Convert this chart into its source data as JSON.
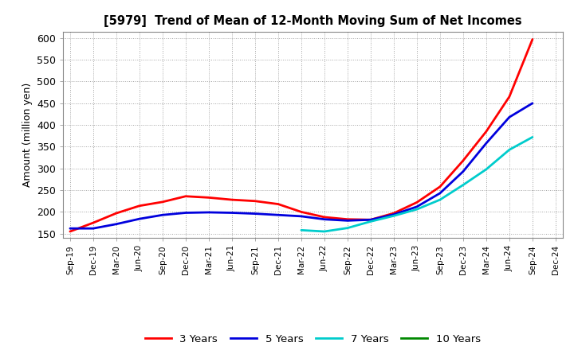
{
  "title": "[5979]  Trend of Mean of 12-Month Moving Sum of Net Incomes",
  "ylabel": "Amount (million yen)",
  "background_color": "#ffffff",
  "plot_bg_color": "#ffffff",
  "grid_color": "#999999",
  "ylim": [
    140,
    615
  ],
  "yticks": [
    150,
    200,
    250,
    300,
    350,
    400,
    450,
    500,
    550,
    600
  ],
  "x_labels": [
    "Sep-19",
    "Dec-19",
    "Mar-20",
    "Jun-20",
    "Sep-20",
    "Dec-20",
    "Mar-21",
    "Jun-21",
    "Sep-21",
    "Dec-21",
    "Mar-22",
    "Jun-22",
    "Sep-22",
    "Dec-22",
    "Mar-23",
    "Jun-23",
    "Sep-23",
    "Dec-23",
    "Mar-24",
    "Jun-24",
    "Sep-24",
    "Dec-24"
  ],
  "series_order": [
    "3 Years",
    "5 Years",
    "7 Years",
    "10 Years"
  ],
  "series": {
    "3 Years": {
      "color": "#ff0000",
      "data": [
        155,
        175,
        197,
        214,
        223,
        236,
        233,
        228,
        225,
        218,
        200,
        188,
        183,
        182,
        197,
        222,
        258,
        318,
        385,
        465,
        597,
        null
      ]
    },
    "5 Years": {
      "color": "#0000dd",
      "data": [
        162,
        162,
        172,
        184,
        193,
        198,
        199,
        198,
        196,
        193,
        190,
        183,
        180,
        182,
        194,
        212,
        243,
        293,
        358,
        418,
        450,
        null
      ]
    },
    "7 Years": {
      "color": "#00cccc",
      "data": [
        null,
        null,
        null,
        null,
        null,
        null,
        null,
        null,
        null,
        null,
        158,
        155,
        163,
        178,
        191,
        206,
        228,
        262,
        298,
        343,
        372,
        null
      ]
    },
    "10 Years": {
      "color": "#008800",
      "data": [
        null,
        null,
        null,
        null,
        null,
        null,
        null,
        null,
        null,
        null,
        null,
        null,
        null,
        null,
        null,
        null,
        null,
        null,
        null,
        null,
        null,
        null
      ]
    }
  }
}
